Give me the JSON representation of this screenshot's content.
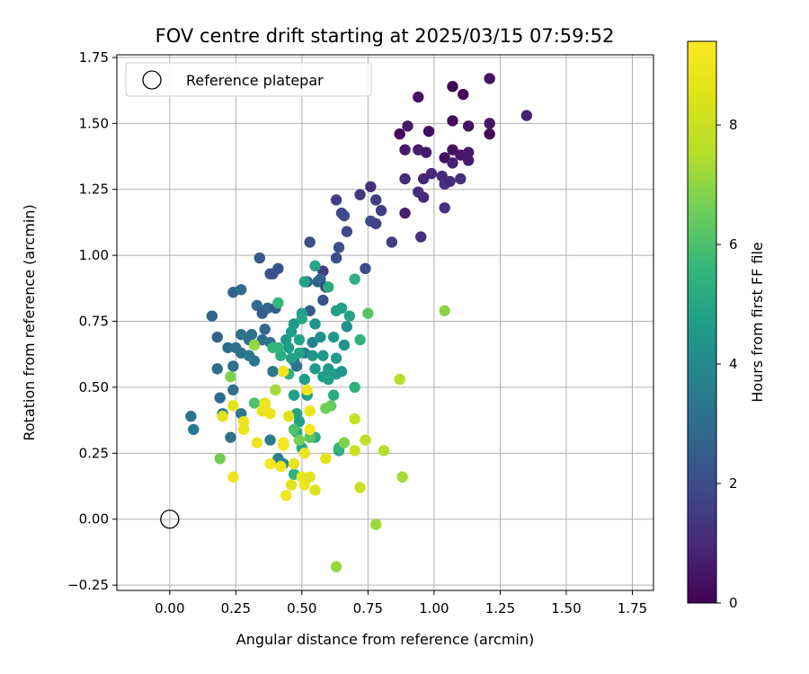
{
  "chart_data": {
    "type": "scatter",
    "title": "FOV centre drift starting at 2025/03/15 07:59:52",
    "xlabel": "Angular distance from reference (arcmin)",
    "ylabel": "Rotation from reference (arcmin)",
    "xlim": [
      -0.2,
      1.83
    ],
    "ylim": [
      -0.27,
      1.76
    ],
    "xticks": [
      "0.00",
      "0.25",
      "0.50",
      "0.75",
      "1.00",
      "1.25",
      "1.50",
      "1.75"
    ],
    "yticks": [
      "−0.25",
      "0.00",
      "0.25",
      "0.50",
      "0.75",
      "1.00",
      "1.25",
      "1.50",
      "1.75"
    ],
    "grid": true,
    "legend": {
      "placement": "top-left",
      "entries": [
        "Reference platepar"
      ]
    },
    "reference_point": {
      "x": 0.0,
      "y": 0.0
    },
    "colorbar": {
      "label": "Hours from first FF file",
      "colormap": "viridis",
      "range": [
        0,
        9.4
      ],
      "ticks": [
        "0",
        "2",
        "4",
        "6",
        "8"
      ]
    },
    "points": [
      [
        0.87,
        1.46,
        0.2
      ],
      [
        1.07,
        1.64,
        0.1
      ],
      [
        1.11,
        1.61,
        0.2
      ],
      [
        1.21,
        1.67,
        0.4
      ],
      [
        0.94,
        1.6,
        0.4
      ],
      [
        0.9,
        1.49,
        0.6
      ],
      [
        0.98,
        1.47,
        0.3
      ],
      [
        1.07,
        1.51,
        0.2
      ],
      [
        1.13,
        1.49,
        0.4
      ],
      [
        1.21,
        1.5,
        0.5
      ],
      [
        1.21,
        1.46,
        0.2
      ],
      [
        1.35,
        1.53,
        0.8
      ],
      [
        0.89,
        1.4,
        0.6
      ],
      [
        0.94,
        1.4,
        0.7
      ],
      [
        0.97,
        1.39,
        0.5
      ],
      [
        1.04,
        1.37,
        0.3
      ],
      [
        1.07,
        1.4,
        0.4
      ],
      [
        1.1,
        1.38,
        0.5
      ],
      [
        1.13,
        1.39,
        0.6
      ],
      [
        1.13,
        1.36,
        0.6
      ],
      [
        1.07,
        1.35,
        0.8
      ],
      [
        0.96,
        1.29,
        0.9
      ],
      [
        0.99,
        1.31,
        1.0
      ],
      [
        1.03,
        1.3,
        1.0
      ],
      [
        1.04,
        1.27,
        1.2
      ],
      [
        1.06,
        1.28,
        1.0
      ],
      [
        1.1,
        1.29,
        1.1
      ],
      [
        0.89,
        1.29,
        1.0
      ],
      [
        0.94,
        1.24,
        1.1
      ],
      [
        0.96,
        1.22,
        1.0
      ],
      [
        1.04,
        1.18,
        1.2
      ],
      [
        0.89,
        1.16,
        0.7
      ],
      [
        0.95,
        1.07,
        1.2
      ],
      [
        0.76,
        1.26,
        1.2
      ],
      [
        0.72,
        1.23,
        1.4
      ],
      [
        0.78,
        1.21,
        1.5
      ],
      [
        0.8,
        1.17,
        1.5
      ],
      [
        0.63,
        1.21,
        1.6
      ],
      [
        0.65,
        1.16,
        1.8
      ],
      [
        0.66,
        1.15,
        1.9
      ],
      [
        0.67,
        1.09,
        1.9
      ],
      [
        0.76,
        1.13,
        1.9
      ],
      [
        0.78,
        1.12,
        1.7
      ],
      [
        0.84,
        1.05,
        1.5
      ],
      [
        0.53,
        1.05,
        2.0
      ],
      [
        0.64,
        1.03,
        2.1
      ],
      [
        0.63,
        0.99,
        2.0
      ],
      [
        0.74,
        0.95,
        2.0
      ],
      [
        0.34,
        0.99,
        2.4
      ],
      [
        0.38,
        0.93,
        2.3
      ],
      [
        0.39,
        0.93,
        2.2
      ],
      [
        0.41,
        0.95,
        2.2
      ],
      [
        0.58,
        0.94,
        1.5
      ],
      [
        0.52,
        0.9,
        2.6
      ],
      [
        0.56,
        0.9,
        2.6
      ],
      [
        0.57,
        0.91,
        2.8
      ],
      [
        0.59,
        0.88,
        1.8
      ],
      [
        0.58,
        0.83,
        2.2
      ],
      [
        0.24,
        0.86,
        2.7
      ],
      [
        0.27,
        0.87,
        3.0
      ],
      [
        0.33,
        0.81,
        2.9
      ],
      [
        0.35,
        0.78,
        2.5
      ],
      [
        0.37,
        0.8,
        2.8
      ],
      [
        0.4,
        0.8,
        2.5
      ],
      [
        0.53,
        0.79,
        2.4
      ],
      [
        0.16,
        0.77,
        2.7
      ],
      [
        0.18,
        0.69,
        2.6
      ],
      [
        0.27,
        0.7,
        3.2
      ],
      [
        0.3,
        0.68,
        3.3
      ],
      [
        0.31,
        0.7,
        3.2
      ],
      [
        0.36,
        0.72,
        2.8
      ],
      [
        0.35,
        0.68,
        3.0
      ],
      [
        0.38,
        0.67,
        3.1
      ],
      [
        0.22,
        0.65,
        3.0
      ],
      [
        0.25,
        0.65,
        3.1
      ],
      [
        0.27,
        0.63,
        3.2
      ],
      [
        0.3,
        0.62,
        3.4
      ],
      [
        0.24,
        0.58,
        3.1
      ],
      [
        0.32,
        0.6,
        3.3
      ],
      [
        0.39,
        0.56,
        3.4
      ],
      [
        0.43,
        0.56,
        3.5
      ],
      [
        0.18,
        0.57,
        3.0
      ],
      [
        0.19,
        0.46,
        3.0
      ],
      [
        0.24,
        0.49,
        3.1
      ],
      [
        0.2,
        0.4,
        3.4
      ],
      [
        0.08,
        0.39,
        3.3
      ],
      [
        0.09,
        0.34,
        3.4
      ],
      [
        0.27,
        0.4,
        3.5
      ],
      [
        0.23,
        0.31,
        3.2
      ],
      [
        0.38,
        0.3,
        3.5
      ],
      [
        0.43,
        0.21,
        3.9
      ],
      [
        0.41,
        0.23,
        3.7
      ],
      [
        0.47,
        0.6,
        3.6
      ],
      [
        0.48,
        0.58,
        3.2
      ],
      [
        0.51,
        0.63,
        3.6
      ],
      [
        0.54,
        0.67,
        3.8
      ],
      [
        0.55,
        0.74,
        4.4
      ],
      [
        0.57,
        0.69,
        4.2
      ],
      [
        0.54,
        0.62,
        4.4
      ],
      [
        0.55,
        0.57,
        4.6
      ],
      [
        0.58,
        0.62,
        4.5
      ],
      [
        0.58,
        0.54,
        4.7
      ],
      [
        0.6,
        0.57,
        4.6
      ],
      [
        0.6,
        0.53,
        4.8
      ],
      [
        0.63,
        0.55,
        4.7
      ],
      [
        0.65,
        0.56,
        4.4
      ],
      [
        0.63,
        0.61,
        4.6
      ],
      [
        0.66,
        0.66,
        4.4
      ],
      [
        0.62,
        0.69,
        4.5
      ],
      [
        0.67,
        0.73,
        4.2
      ],
      [
        0.63,
        0.79,
        4.7
      ],
      [
        0.65,
        0.8,
        4.8
      ],
      [
        0.68,
        0.77,
        4.9
      ],
      [
        0.6,
        0.88,
        5.2
      ],
      [
        0.55,
        0.96,
        5.0
      ],
      [
        0.51,
        0.9,
        4.9
      ],
      [
        0.47,
        0.74,
        4.5
      ],
      [
        0.46,
        0.71,
        4.6
      ],
      [
        0.5,
        0.78,
        4.8
      ],
      [
        0.5,
        0.76,
        5.0
      ],
      [
        0.49,
        0.68,
        4.8
      ],
      [
        0.49,
        0.63,
        4.9
      ],
      [
        0.44,
        0.68,
        4.5
      ],
      [
        0.45,
        0.65,
        4.7
      ],
      [
        0.46,
        0.61,
        4.8
      ],
      [
        0.51,
        0.53,
        4.7
      ],
      [
        0.52,
        0.47,
        4.8
      ],
      [
        0.47,
        0.47,
        4.7
      ],
      [
        0.48,
        0.4,
        4.9
      ],
      [
        0.49,
        0.37,
        4.8
      ],
      [
        0.48,
        0.33,
        5.0
      ],
      [
        0.55,
        0.31,
        5.2
      ],
      [
        0.5,
        0.27,
        5.0
      ],
      [
        0.42,
        0.62,
        5.2
      ],
      [
        0.41,
        0.65,
        5.5
      ],
      [
        0.41,
        0.82,
        5.6
      ],
      [
        0.45,
        0.55,
        5.4
      ],
      [
        0.39,
        0.65,
        5.6
      ],
      [
        0.7,
        0.91,
        5.4
      ],
      [
        0.72,
        0.68,
        5.4
      ],
      [
        0.75,
        0.78,
        6.2
      ],
      [
        0.7,
        0.5,
        5.4
      ],
      [
        0.64,
        0.26,
        5.0
      ],
      [
        0.62,
        0.47,
        5.2
      ],
      [
        0.64,
        0.27,
        5.6
      ],
      [
        0.66,
        0.29,
        6.8
      ],
      [
        0.61,
        0.43,
        6.4
      ],
      [
        0.59,
        0.42,
        6.6
      ],
      [
        0.53,
        0.31,
        6.3
      ],
      [
        0.47,
        0.17,
        5.4
      ],
      [
        0.47,
        0.34,
        6.1
      ],
      [
        0.32,
        0.66,
        7.1
      ],
      [
        0.32,
        0.44,
        6.1
      ],
      [
        0.23,
        0.54,
        6.8
      ],
      [
        0.19,
        0.23,
        6.6
      ],
      [
        0.4,
        0.49,
        7.3
      ],
      [
        0.49,
        0.3,
        6.7
      ],
      [
        1.04,
        0.79,
        7.0
      ],
      [
        0.87,
        0.53,
        7.6
      ],
      [
        0.81,
        0.26,
        7.5
      ],
      [
        0.88,
        0.16,
        7.3
      ],
      [
        0.78,
        -0.02,
        7.2
      ],
      [
        0.72,
        0.12,
        8.0
      ],
      [
        0.74,
        0.3,
        7.8
      ],
      [
        0.7,
        0.26,
        8.0
      ],
      [
        0.7,
        0.38,
        7.9
      ],
      [
        0.63,
        -0.18,
        7.1
      ],
      [
        0.2,
        0.39,
        8.6
      ],
      [
        0.24,
        0.43,
        8.6
      ],
      [
        0.24,
        0.16,
        9.0
      ],
      [
        0.28,
        0.37,
        8.8
      ],
      [
        0.28,
        0.34,
        8.9
      ],
      [
        0.33,
        0.29,
        9.0
      ],
      [
        0.35,
        0.41,
        8.7
      ],
      [
        0.36,
        0.44,
        8.6
      ],
      [
        0.38,
        0.4,
        8.9
      ],
      [
        0.38,
        0.21,
        9.2
      ],
      [
        0.42,
        0.2,
        9.0
      ],
      [
        0.43,
        0.29,
        9.1
      ],
      [
        0.43,
        0.28,
        9.2
      ],
      [
        0.44,
        0.09,
        9.0
      ],
      [
        0.45,
        0.39,
        8.5
      ],
      [
        0.47,
        0.21,
        8.7
      ],
      [
        0.46,
        0.13,
        8.6
      ],
      [
        0.5,
        0.16,
        8.8
      ],
      [
        0.51,
        0.25,
        8.9
      ],
      [
        0.51,
        0.13,
        9.0
      ],
      [
        0.53,
        0.41,
        8.9
      ],
      [
        0.53,
        0.34,
        9.2
      ],
      [
        0.53,
        0.16,
        8.6
      ],
      [
        0.55,
        0.11,
        8.4
      ],
      [
        0.52,
        0.49,
        9.0
      ],
      [
        0.59,
        0.23,
        8.6
      ],
      [
        0.43,
        0.56,
        9.0
      ],
      [
        0.36,
        0.43,
        9.0
      ]
    ]
  }
}
